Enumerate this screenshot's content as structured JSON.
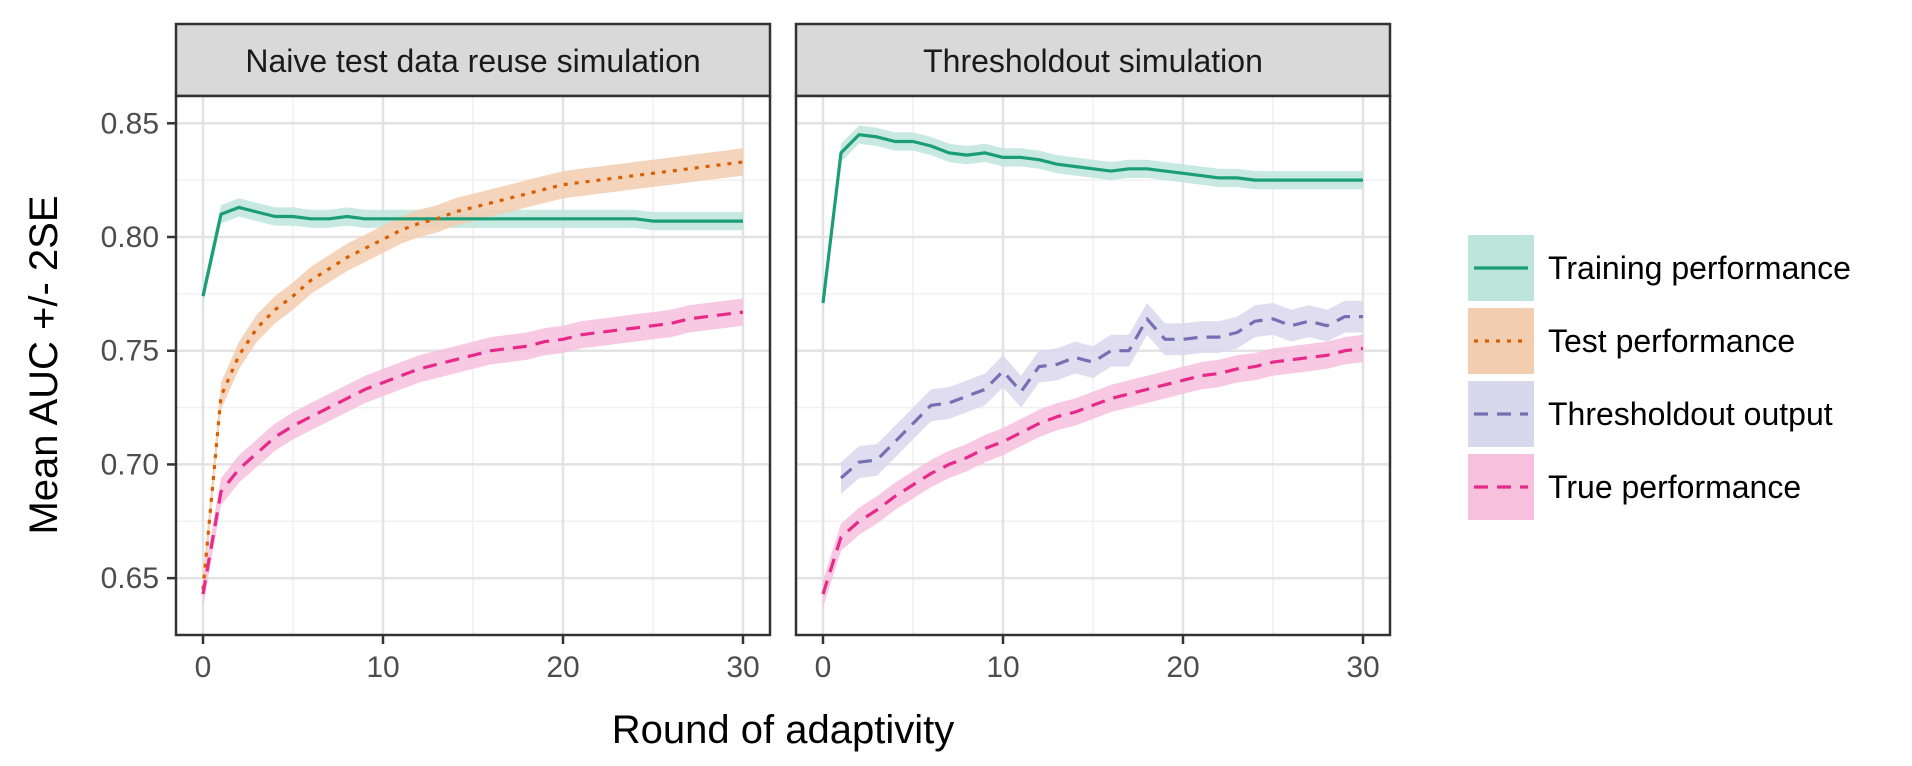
{
  "chart_data": {
    "type": "line",
    "xlabel": "Round of adaptivity",
    "ylabel": "Mean AUC +/- 2SE",
    "xlim": [
      -1.5,
      31.5
    ],
    "ylim": [
      0.625,
      0.862
    ],
    "x_ticks": [
      0,
      10,
      20,
      30
    ],
    "x_tick_labels": [
      "0",
      "10",
      "20",
      "30"
    ],
    "y_ticks": [
      0.65,
      0.7,
      0.75,
      0.8,
      0.85
    ],
    "y_tick_labels": [
      "0.65",
      "0.70",
      "0.75",
      "0.80",
      "0.85"
    ],
    "grid": true,
    "legend_position": "right",
    "legend": [
      {
        "key": "training",
        "label": "Training performance",
        "color": "#1B9E77",
        "fill": "#BDE5DA",
        "dash": "solid"
      },
      {
        "key": "test",
        "label": "Test performance",
        "color": "#D95F02",
        "fill": "#F3CDB0",
        "dash": "dotted"
      },
      {
        "key": "thresholdout",
        "label": "Thresholdout output",
        "color": "#7570B3",
        "fill": "#D9D7EC",
        "dash": "dashed"
      },
      {
        "key": "true",
        "label": "True performance",
        "color": "#E7298A",
        "fill": "#F7C0DD",
        "dash": "dashed"
      }
    ],
    "panels": [
      {
        "title": "Naive test data reuse simulation",
        "series": [
          {
            "key": "training",
            "name": "Training performance",
            "se": 0.004,
            "x": [
              0,
              1,
              2,
              3,
              4,
              5,
              6,
              7,
              8,
              9,
              10,
              11,
              12,
              13,
              14,
              15,
              16,
              17,
              18,
              19,
              20,
              21,
              22,
              23,
              24,
              25,
              26,
              27,
              28,
              29,
              30
            ],
            "y": [
              0.774,
              0.81,
              0.813,
              0.811,
              0.809,
              0.809,
              0.808,
              0.808,
              0.809,
              0.808,
              0.808,
              0.808,
              0.808,
              0.808,
              0.808,
              0.808,
              0.808,
              0.808,
              0.808,
              0.808,
              0.808,
              0.808,
              0.808,
              0.808,
              0.808,
              0.807,
              0.807,
              0.807,
              0.807,
              0.807,
              0.807
            ]
          },
          {
            "key": "test",
            "name": "Test performance",
            "se": 0.006,
            "x": [
              0,
              1,
              2,
              3,
              4,
              5,
              6,
              7,
              8,
              9,
              10,
              11,
              12,
              13,
              14,
              15,
              16,
              17,
              18,
              19,
              20,
              21,
              22,
              23,
              24,
              25,
              26,
              27,
              28,
              29,
              30
            ],
            "y": [
              0.645,
              0.73,
              0.748,
              0.76,
              0.768,
              0.774,
              0.781,
              0.786,
              0.791,
              0.795,
              0.799,
              0.803,
              0.806,
              0.808,
              0.811,
              0.813,
              0.815,
              0.817,
              0.819,
              0.821,
              0.823,
              0.824,
              0.825,
              0.826,
              0.827,
              0.828,
              0.829,
              0.83,
              0.831,
              0.832,
              0.833
            ]
          },
          {
            "key": "true",
            "name": "True performance",
            "se": 0.006,
            "x": [
              0,
              1,
              2,
              3,
              4,
              5,
              6,
              7,
              8,
              9,
              10,
              11,
              12,
              13,
              14,
              15,
              16,
              17,
              18,
              19,
              20,
              21,
              22,
              23,
              24,
              25,
              26,
              27,
              28,
              29,
              30
            ],
            "y": [
              0.643,
              0.688,
              0.698,
              0.705,
              0.712,
              0.717,
              0.721,
              0.725,
              0.729,
              0.733,
              0.736,
              0.739,
              0.742,
              0.744,
              0.746,
              0.748,
              0.75,
              0.751,
              0.752,
              0.754,
              0.755,
              0.757,
              0.758,
              0.759,
              0.76,
              0.761,
              0.762,
              0.764,
              0.765,
              0.766,
              0.767
            ]
          }
        ]
      },
      {
        "title": "Thresholdout simulation",
        "series": [
          {
            "key": "training",
            "name": "Training performance",
            "se": 0.004,
            "x": [
              0,
              1,
              2,
              3,
              4,
              5,
              6,
              7,
              8,
              9,
              10,
              11,
              12,
              13,
              14,
              15,
              16,
              17,
              18,
              19,
              20,
              21,
              22,
              23,
              24,
              25,
              26,
              27,
              28,
              29,
              30
            ],
            "y": [
              0.771,
              0.837,
              0.845,
              0.844,
              0.842,
              0.842,
              0.84,
              0.837,
              0.836,
              0.837,
              0.835,
              0.835,
              0.834,
              0.832,
              0.831,
              0.83,
              0.829,
              0.83,
              0.83,
              0.829,
              0.828,
              0.827,
              0.826,
              0.826,
              0.825,
              0.825,
              0.825,
              0.825,
              0.825,
              0.825,
              0.825
            ]
          },
          {
            "key": "thresholdout",
            "name": "Thresholdout output",
            "se": 0.007,
            "x": [
              0,
              1,
              2,
              3,
              4,
              5,
              6,
              7,
              8,
              9,
              10,
              11,
              12,
              13,
              14,
              15,
              16,
              17,
              18,
              19,
              20,
              21,
              22,
              23,
              24,
              25,
              26,
              27,
              28,
              29,
              30
            ],
            "y": [
              null,
              0.694,
              0.701,
              0.702,
              0.71,
              0.718,
              0.726,
              0.727,
              0.73,
              0.733,
              0.741,
              0.732,
              0.743,
              0.744,
              0.747,
              0.745,
              0.75,
              0.75,
              0.764,
              0.755,
              0.755,
              0.756,
              0.756,
              0.758,
              0.763,
              0.764,
              0.761,
              0.763,
              0.761,
              0.765,
              0.765
            ]
          },
          {
            "key": "true",
            "name": "True performance",
            "se": 0.006,
            "x": [
              0,
              1,
              2,
              3,
              4,
              5,
              6,
              7,
              8,
              9,
              10,
              11,
              12,
              13,
              14,
              15,
              16,
              17,
              18,
              19,
              20,
              21,
              22,
              23,
              24,
              25,
              26,
              27,
              28,
              29,
              30
            ],
            "y": [
              0.643,
              0.668,
              0.675,
              0.68,
              0.686,
              0.691,
              0.696,
              0.7,
              0.703,
              0.707,
              0.71,
              0.714,
              0.718,
              0.721,
              0.723,
              0.726,
              0.729,
              0.731,
              0.733,
              0.735,
              0.737,
              0.739,
              0.74,
              0.742,
              0.743,
              0.745,
              0.746,
              0.747,
              0.748,
              0.75,
              0.751
            ]
          }
        ]
      }
    ]
  }
}
